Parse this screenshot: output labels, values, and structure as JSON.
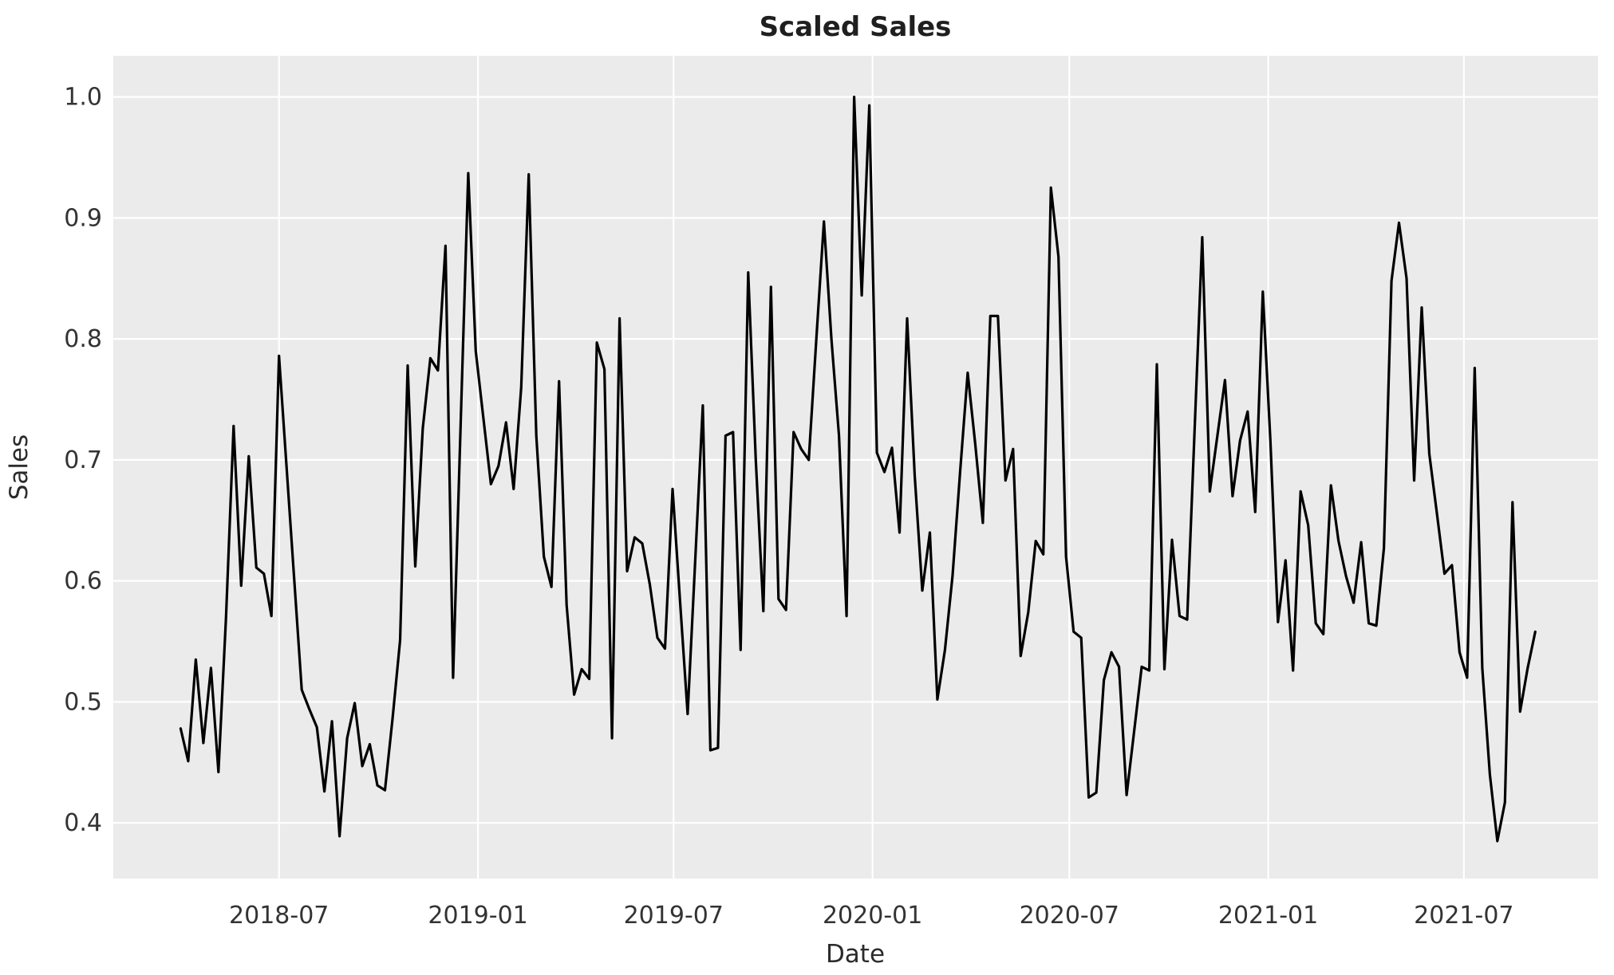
{
  "title": "Scaled Sales",
  "x_axis": {
    "label": "Date"
  },
  "y_axis": {
    "label": "Sales"
  },
  "style": {
    "figure_bg": "#ffffff",
    "plot_bg": "#ebebeb",
    "grid_color": "#ffffff",
    "line_color": "#000000",
    "tick_text_color": "#333333",
    "title_color": "#1f1f1f"
  },
  "chart_data": {
    "type": "line",
    "title": "Scaled Sales",
    "xlabel": "Date",
    "ylabel": "Sales",
    "series_name": "Scaled Sales",
    "grid": true,
    "legend_position": "none",
    "x_start_date": "2018-04-01",
    "x_step_days": 7,
    "n_points": 180,
    "values": [
      0.478,
      0.451,
      0.535,
      0.466,
      0.528,
      0.442,
      0.57,
      0.728,
      0.596,
      0.703,
      0.611,
      0.606,
      0.571,
      0.786,
      0.694,
      0.602,
      0.51,
      0.494,
      0.479,
      0.426,
      0.484,
      0.389,
      0.47,
      0.499,
      0.447,
      0.465,
      0.431,
      0.427,
      0.486,
      0.551,
      0.778,
      0.612,
      0.726,
      0.784,
      0.774,
      0.877,
      0.52,
      0.73,
      0.937,
      0.79,
      0.735,
      0.68,
      0.695,
      0.731,
      0.676,
      0.76,
      0.936,
      0.72,
      0.62,
      0.595,
      0.765,
      0.58,
      0.506,
      0.527,
      0.519,
      0.797,
      0.775,
      0.47,
      0.817,
      0.608,
      0.636,
      0.631,
      0.597,
      0.553,
      0.544,
      0.676,
      0.583,
      0.49,
      0.617,
      0.745,
      0.46,
      0.462,
      0.72,
      0.723,
      0.543,
      0.855,
      0.7,
      0.575,
      0.843,
      0.585,
      0.576,
      0.723,
      0.709,
      0.7,
      0.8,
      0.897,
      0.8,
      0.72,
      0.571,
      1.0,
      0.836,
      0.993,
      0.706,
      0.69,
      0.71,
      0.64,
      0.817,
      0.687,
      0.592,
      0.64,
      0.502,
      0.543,
      0.604,
      0.69,
      0.772,
      0.713,
      0.648,
      0.819,
      0.819,
      0.683,
      0.709,
      0.538,
      0.574,
      0.633,
      0.622,
      0.925,
      0.868,
      0.62,
      0.558,
      0.553,
      0.421,
      0.425,
      0.518,
      0.541,
      0.529,
      0.423,
      0.476,
      0.529,
      0.526,
      0.779,
      0.527,
      0.634,
      0.571,
      0.568,
      0.726,
      0.884,
      0.674,
      0.72,
      0.766,
      0.67,
      0.716,
      0.74,
      0.657,
      0.839,
      0.716,
      0.566,
      0.617,
      0.526,
      0.674,
      0.646,
      0.565,
      0.556,
      0.679,
      0.633,
      0.604,
      0.582,
      0.632,
      0.565,
      0.563,
      0.627,
      0.848,
      0.896,
      0.85,
      0.683,
      0.826,
      0.705,
      0.656,
      0.606,
      0.613,
      0.541,
      0.52,
      0.776,
      0.528,
      0.44,
      0.385,
      0.417,
      0.665,
      0.492,
      0.528,
      0.558
    ],
    "x_ticks": [
      {
        "pos_weeks": 13.0,
        "label": "2018-07"
      },
      {
        "pos_weeks": 39.29,
        "label": "2019-01"
      },
      {
        "pos_weeks": 65.14,
        "label": "2019-07"
      },
      {
        "pos_weeks": 91.43,
        "label": "2020-01"
      },
      {
        "pos_weeks": 117.43,
        "label": "2020-07"
      },
      {
        "pos_weeks": 143.71,
        "label": "2021-01"
      },
      {
        "pos_weeks": 169.57,
        "label": "2021-07"
      }
    ],
    "y_ticks": [
      {
        "value": 0.4,
        "label": "0.4"
      },
      {
        "value": 0.5,
        "label": "0.5"
      },
      {
        "value": 0.6,
        "label": "0.6"
      },
      {
        "value": 0.7,
        "label": "0.7"
      },
      {
        "value": 0.8,
        "label": "0.8"
      },
      {
        "value": 0.9,
        "label": "0.9"
      },
      {
        "value": 1.0,
        "label": "1.0"
      }
    ],
    "ylim": [
      0.354,
      1.034
    ],
    "xlim_weeks": [
      -8.9,
      187.3
    ]
  }
}
